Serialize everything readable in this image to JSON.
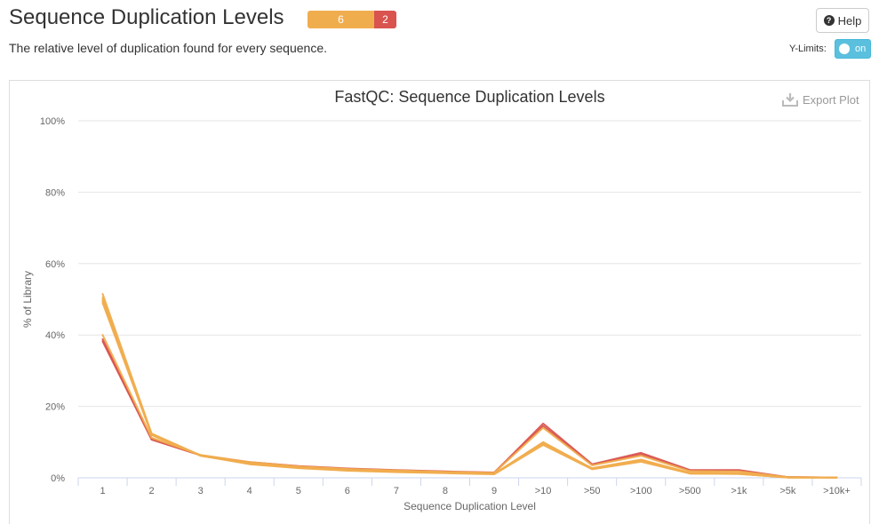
{
  "header": {
    "title": "Sequence Duplication Levels",
    "subtitle": "The relative level of duplication found for every sequence.",
    "status_counts": [
      {
        "label": "6",
        "count": 6,
        "color": "#f0ad4e"
      },
      {
        "label": "2",
        "count": 2,
        "color": "#d9534f"
      }
    ],
    "help_label": "Help",
    "ylimits_label": "Y-Limits:",
    "toggle_label": "on"
  },
  "plot": {
    "export_label": "Export Plot"
  },
  "chart_data": {
    "type": "line",
    "title": "FastQC: Sequence Duplication Levels",
    "xlabel": "Sequence Duplication Level",
    "ylabel": "% of Library",
    "categories": [
      "1",
      "2",
      "3",
      "4",
      "5",
      "6",
      "7",
      "8",
      "9",
      ">10",
      ">50",
      ">100",
      ">500",
      ">1k",
      ">5k",
      ">10k+"
    ],
    "ylim": [
      0,
      100
    ],
    "yticks": [
      "0%",
      "20%",
      "40%",
      "60%",
      "80%",
      "100%"
    ],
    "ytick_values": [
      0,
      20,
      40,
      60,
      80,
      100
    ],
    "grid": true,
    "series": [
      {
        "color": "#d9534f",
        "values": [
          38.2,
          10.7,
          6.3,
          4.3,
          3.2,
          2.5,
          2.1,
          1.7,
          1.4,
          15.2,
          3.8,
          7.0,
          2.2,
          2.2,
          0.2,
          0.1
        ]
      },
      {
        "color": "#d9534f",
        "values": [
          38.8,
          11.0,
          6.3,
          4.4,
          3.3,
          2.6,
          2.2,
          1.8,
          1.5,
          14.5,
          3.6,
          6.5,
          2.0,
          1.9,
          0.2,
          0.1
        ]
      },
      {
        "color": "#f0ad4e",
        "values": [
          40.0,
          11.2,
          6.4,
          4.4,
          3.2,
          2.5,
          2.1,
          1.7,
          1.4,
          14.0,
          3.5,
          6.2,
          1.9,
          1.8,
          0.2,
          0.1
        ]
      },
      {
        "color": "#f0ad4e",
        "values": [
          49.0,
          12.0,
          6.2,
          3.9,
          2.8,
          2.1,
          1.7,
          1.4,
          1.1,
          10.0,
          2.6,
          5.0,
          1.3,
          1.2,
          0.1,
          0.1
        ]
      },
      {
        "color": "#f0ad4e",
        "values": [
          50.0,
          12.2,
          6.2,
          3.9,
          2.8,
          2.1,
          1.7,
          1.4,
          1.1,
          9.6,
          2.5,
          4.8,
          1.2,
          1.1,
          0.1,
          0.1
        ]
      },
      {
        "color": "#f0ad4e",
        "values": [
          51.5,
          12.4,
          6.3,
          3.8,
          2.7,
          2.0,
          1.6,
          1.3,
          1.0,
          9.2,
          2.4,
          4.5,
          1.2,
          1.1,
          0.1,
          0.1
        ]
      },
      {
        "color": "#f0ad4e",
        "values": [
          50.5,
          12.3,
          6.2,
          3.9,
          2.8,
          2.1,
          1.7,
          1.4,
          1.1,
          9.8,
          2.6,
          4.9,
          1.3,
          1.2,
          0.1,
          0.1
        ]
      },
      {
        "color": "#f0ad4e",
        "values": [
          49.5,
          12.1,
          6.2,
          4.0,
          2.9,
          2.2,
          1.8,
          1.5,
          1.2,
          9.5,
          2.7,
          5.1,
          1.4,
          1.3,
          0.1,
          0.1
        ]
      }
    ]
  }
}
